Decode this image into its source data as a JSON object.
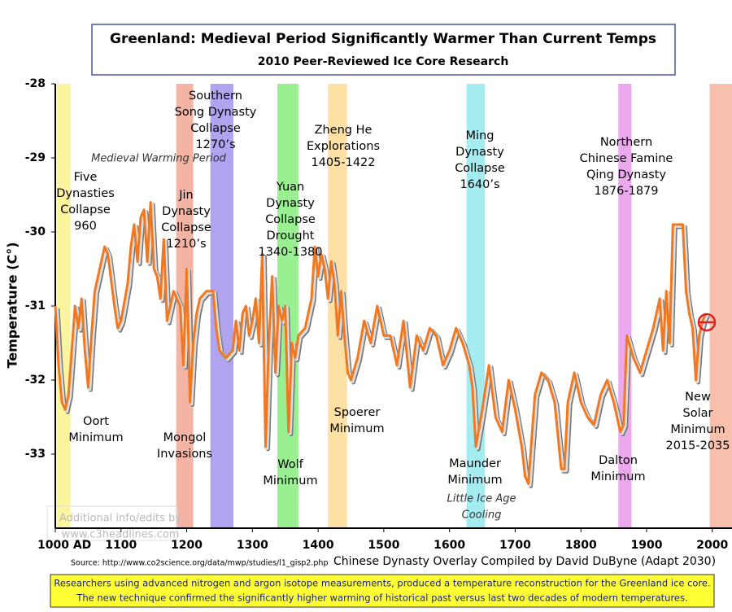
{
  "chart_data": {
    "type": "line",
    "title": "Greenland: Medieval Period Significantly Warmer Than Current Temps",
    "subtitle": "2010 Peer-Reviewed Ice Core Research",
    "y_label": "Temperature (C°)",
    "source": "Source: http://www.co2science.org/data/mwp/studies/l1_gisp2.php",
    "credit": "Chinese Dynasty Overlay Compiled by David DuByne (Adapt 2030)",
    "watermark": [
      "Additional info/edits by",
      "www.c3headlines.com"
    ],
    "footer": [
      "Researchers using advanced nitrogen and argon isotope measurements, produced a temperature reconstruction for the Greenland ice core.",
      "The new technique confirmed the significantly higher warming of historical past versus last two decades of modern temperatures."
    ],
    "xlim": [
      1000,
      2030
    ],
    "ylim": [
      -34,
      -28
    ],
    "xticks": [
      {
        "value": 1000,
        "label": "1000 AD"
      },
      1100,
      1200,
      1300,
      1400,
      1500,
      1600,
      1700,
      1800,
      1900,
      2000
    ],
    "yticks": [
      -28,
      -29,
      -30,
      -31,
      -32,
      -33
    ],
    "bands": [
      {
        "x": [
          1002,
          1023
        ],
        "color": "#fbf5a0"
      },
      {
        "x": [
          1184,
          1210
        ],
        "color": "#f4b4a4"
      },
      {
        "x": [
          1236,
          1271
        ],
        "color": "#b0a4f0"
      },
      {
        "x": [
          1338,
          1370
        ],
        "color": "#98f090"
      },
      {
        "x": [
          1415,
          1444
        ],
        "color": "#fce0a4"
      },
      {
        "x": [
          1626,
          1654
        ],
        "color": "#a4ecf0"
      },
      {
        "x": [
          1857,
          1877
        ],
        "color": "#eca8ec"
      },
      {
        "x": [
          1996,
          2030
        ],
        "color": "#f8c0ac"
      }
    ],
    "annotations": [
      [
        "Five",
        "Dynasties",
        "Collapse",
        "960"
      ],
      [
        "Oort",
        "Minimum"
      ],
      [
        "Medieval Warming Period"
      ],
      [
        "Jin",
        "Dynasty",
        "Collapse",
        "1210’s"
      ],
      [
        "Southern",
        "Song Dynasty",
        "Collapse",
        "1270’s"
      ],
      [
        "Mongol",
        "Invasions"
      ],
      [
        "Yuan",
        "Dynasty",
        "Collapse",
        "Drought",
        "1340-1380"
      ],
      [
        "Wolf",
        "Minimum"
      ],
      [
        "Zheng He",
        "Explorations",
        "1405-1422"
      ],
      [
        "Spoerer",
        "Minimum"
      ],
      [
        "Ming",
        "Dynasty",
        "Collapse",
        "1640’s"
      ],
      [
        "Maunder",
        "Minimum"
      ],
      [
        "Little Ice Age",
        "Cooling"
      ],
      [
        "Northern",
        "Chinese Famine",
        "Qing Dynasty",
        "1876-1879"
      ],
      [
        "Dalton",
        "Minimum"
      ],
      [
        "New",
        "Solar",
        "Minimum",
        "2015-2035"
      ]
    ],
    "series": [
      {
        "color": "#f07820",
        "x": [
          1000,
          1005,
          1010,
          1015,
          1020,
          1025,
          1030,
          1035,
          1040,
          1045,
          1050,
          1055,
          1060,
          1070,
          1075,
          1080,
          1090,
          1095,
          1100,
          1110,
          1115,
          1120,
          1125,
          1130,
          1135,
          1140,
          1145,
          1150,
          1155,
          1160,
          1165,
          1170,
          1180,
          1190,
          1195,
          1200,
          1205,
          1210,
          1215,
          1220,
          1230,
          1240,
          1245,
          1250,
          1260,
          1270,
          1275,
          1280,
          1285,
          1290,
          1295,
          1300,
          1305,
          1310,
          1315,
          1320,
          1325,
          1330,
          1335,
          1340,
          1345,
          1350,
          1355,
          1360,
          1365,
          1370,
          1380,
          1390,
          1395,
          1400,
          1405,
          1410,
          1415,
          1420,
          1425,
          1430,
          1435,
          1440,
          1445,
          1450,
          1460,
          1470,
          1480,
          1490,
          1500,
          1510,
          1520,
          1530,
          1540,
          1550,
          1560,
          1570,
          1580,
          1590,
          1600,
          1610,
          1620,
          1630,
          1635,
          1640,
          1650,
          1660,
          1670,
          1680,
          1690,
          1700,
          1710,
          1715,
          1720,
          1730,
          1740,
          1750,
          1760,
          1770,
          1775,
          1780,
          1790,
          1800,
          1810,
          1820,
          1830,
          1840,
          1850,
          1860,
          1865,
          1870,
          1880,
          1890,
          1900,
          1910,
          1920,
          1925,
          1930,
          1935,
          1940,
          1950,
          1955,
          1960,
          1965,
          1970,
          1975,
          1980,
          1985,
          1990
        ],
        "values": [
          -31.0,
          -31.8,
          -32.3,
          -32.4,
          -32.2,
          -31.6,
          -31.0,
          -31.3,
          -30.9,
          -31.6,
          -32.1,
          -31.4,
          -30.8,
          -30.4,
          -30.2,
          -30.3,
          -31.0,
          -31.3,
          -31.2,
          -30.7,
          -30.2,
          -29.9,
          -30.4,
          -29.8,
          -29.7,
          -30.4,
          -29.6,
          -30.5,
          -30.6,
          -30.9,
          -30.1,
          -31.2,
          -30.8,
          -31.0,
          -31.8,
          -30.5,
          -32.3,
          -31.5,
          -31.1,
          -30.9,
          -30.8,
          -30.8,
          -31.3,
          -31.6,
          -31.7,
          -31.6,
          -31.2,
          -31.6,
          -31.1,
          -31.0,
          -31.4,
          -31.2,
          -30.9,
          -31.5,
          -30.3,
          -32.9,
          -31.5,
          -30.6,
          -31.9,
          -31.0,
          -31.2,
          -31.0,
          -32.7,
          -31.5,
          -31.7,
          -31.4,
          -31.3,
          -30.9,
          -30.2,
          -30.6,
          -30.3,
          -30.5,
          -30.9,
          -30.4,
          -30.7,
          -31.4,
          -30.8,
          -31.4,
          -31.9,
          -32.0,
          -31.7,
          -31.2,
          -31.5,
          -31.0,
          -31.4,
          -31.4,
          -31.8,
          -31.2,
          -32.1,
          -31.4,
          -31.6,
          -31.3,
          -31.4,
          -31.8,
          -31.6,
          -31.3,
          -31.5,
          -31.8,
          -32.1,
          -32.9,
          -32.4,
          -31.8,
          -32.5,
          -32.7,
          -32.0,
          -32.4,
          -32.9,
          -33.3,
          -33.4,
          -32.2,
          -31.9,
          -32.0,
          -32.3,
          -33.2,
          -33.2,
          -32.3,
          -31.9,
          -32.3,
          -32.5,
          -32.6,
          -32.2,
          -32.0,
          -32.3,
          -32.7,
          -32.6,
          -31.4,
          -31.7,
          -31.9,
          -31.6,
          -31.3,
          -30.9,
          -31.6,
          -30.8,
          -31.5,
          -29.9,
          -29.9,
          -29.9,
          -30.8,
          -31.1,
          -31.3,
          -32.0,
          -31.4,
          -31.2,
          -31.1
        ]
      }
    ]
  }
}
